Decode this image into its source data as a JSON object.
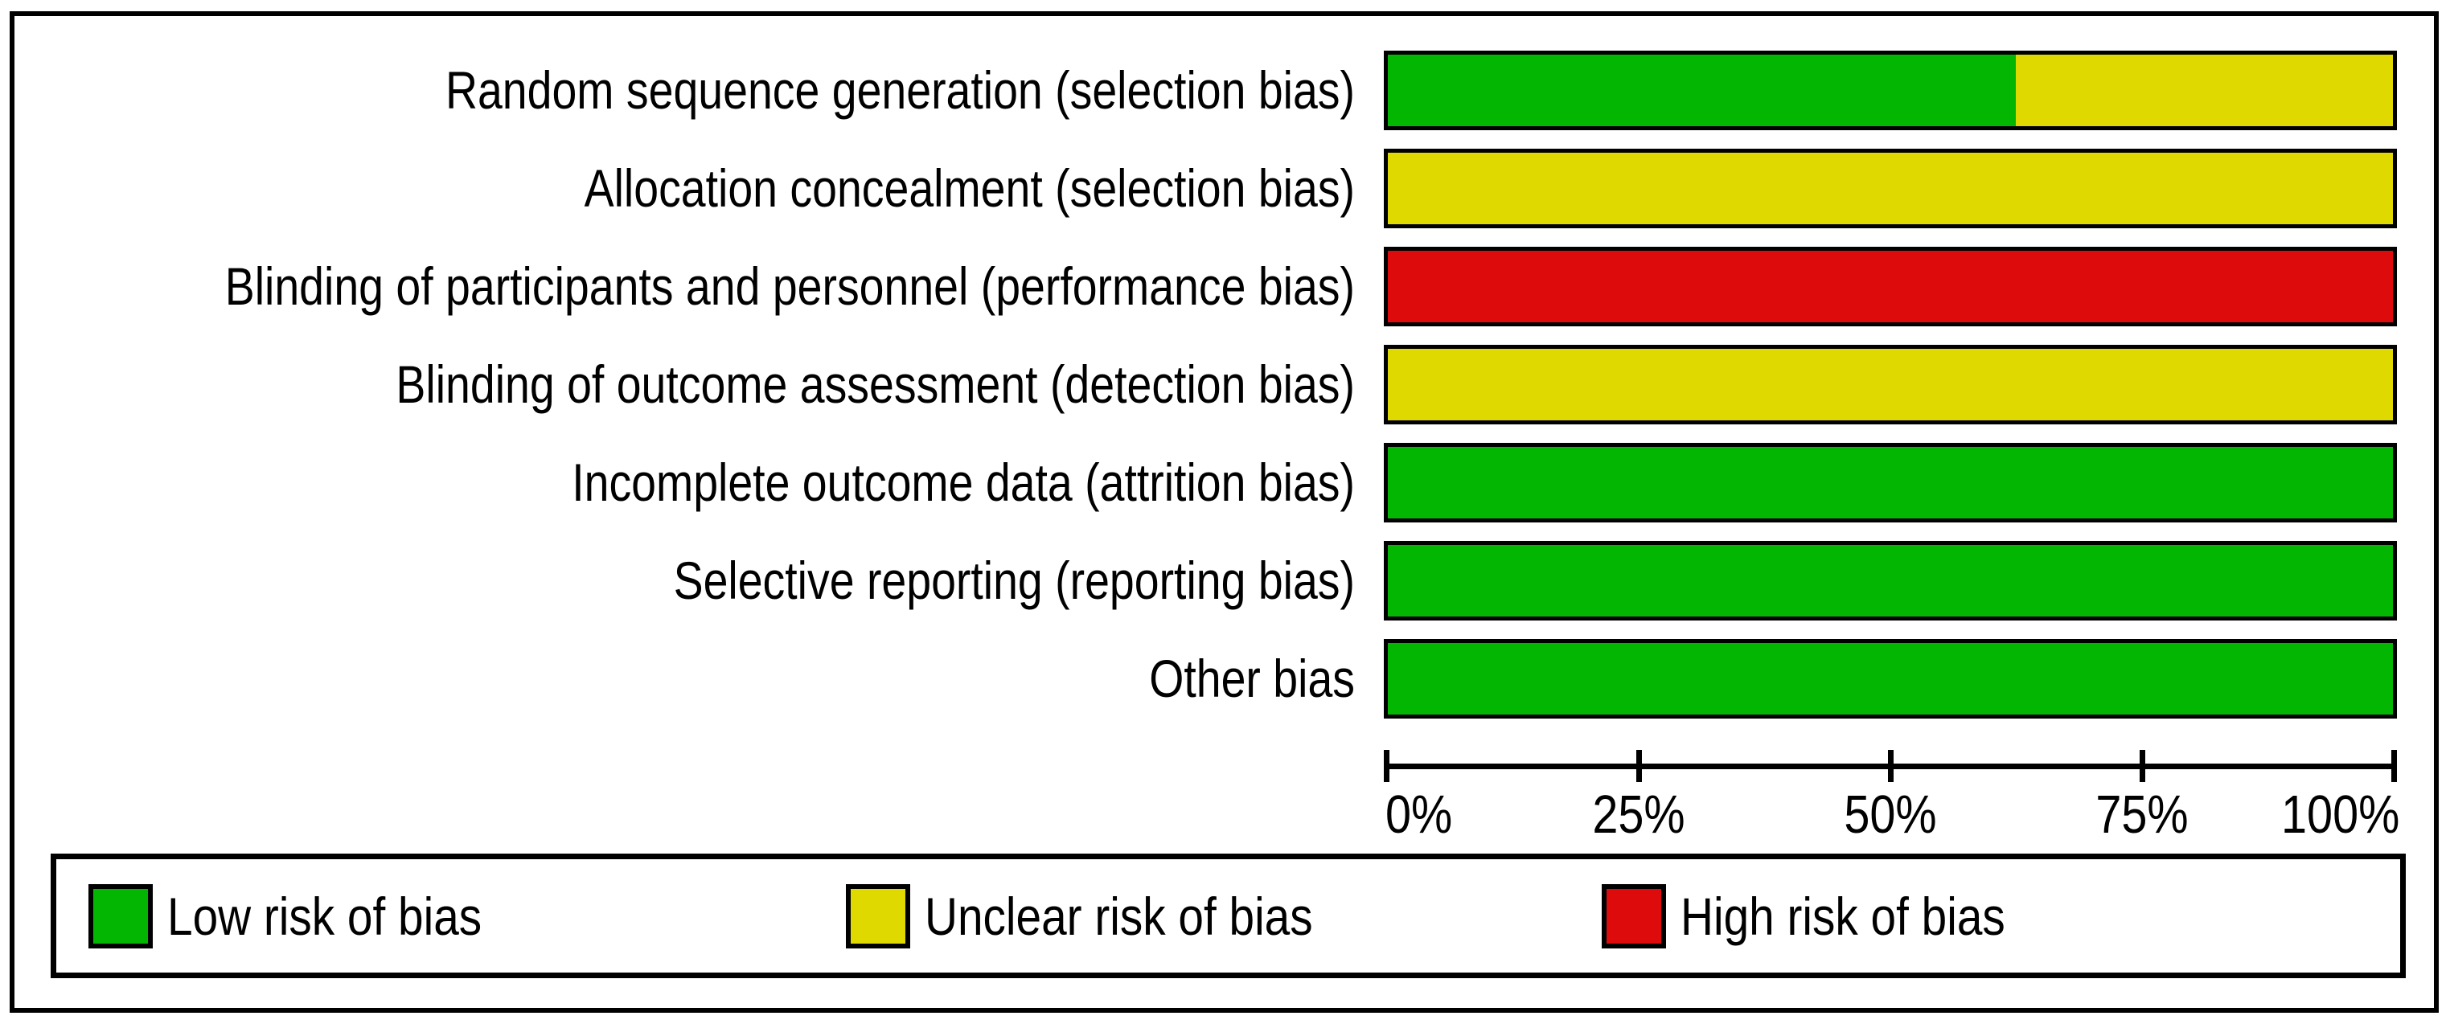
{
  "figure": {
    "background": "#ffffff",
    "border_color": "#000000"
  },
  "chart_data": {
    "type": "bar",
    "orientation": "horizontal",
    "stacked": true,
    "title": "",
    "xlabel": "",
    "ylabel": "",
    "categories": [
      "Random sequence generation (selection bias)",
      "Allocation concealment (selection bias)",
      "Blinding of participants and personnel (performance bias)",
      "Blinding of outcome assessment (detection bias)",
      "Incomplete outcome data (attrition bias)",
      "Selective reporting (reporting bias)",
      "Other bias"
    ],
    "series": [
      {
        "name": "Low risk of bias",
        "color": "#02B602",
        "values": [
          62.5,
          0,
          0,
          0,
          100,
          100,
          100
        ]
      },
      {
        "name": "Unclear risk of bias",
        "color": "#DFD900",
        "values": [
          37.5,
          100,
          0,
          100,
          0,
          0,
          0
        ]
      },
      {
        "name": "High risk of bias",
        "color": "#DD0B0B",
        "values": [
          0,
          0,
          100,
          0,
          0,
          0,
          0
        ]
      }
    ],
    "x_axis": {
      "min": 0,
      "max": 100,
      "unit": "%",
      "ticks": [
        "0%",
        "25%",
        "50%",
        "75%",
        "100%"
      ],
      "grid": false
    },
    "legend_position": "bottom",
    "bar_border_color": "#000000"
  },
  "legend": {
    "items": [
      {
        "label": "Low risk of bias",
        "color": "#02B602"
      },
      {
        "label": "Unclear risk of bias",
        "color": "#DFD900"
      },
      {
        "label": "High risk of bias",
        "color": "#DD0B0B"
      }
    ]
  }
}
